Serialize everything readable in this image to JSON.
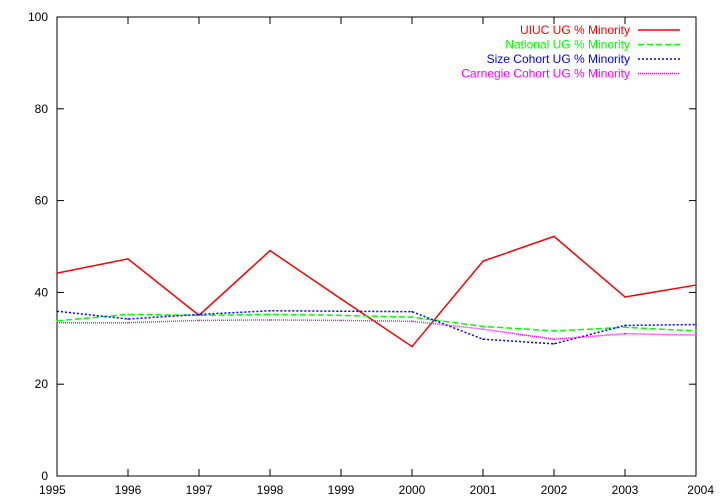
{
  "chart_data": {
    "type": "line",
    "title": "",
    "xlabel": "",
    "ylabel": "",
    "x": [
      1995,
      1996,
      1997,
      1998,
      1999,
      2000,
      2001,
      2002,
      2003,
      2004
    ],
    "xlim": [
      1995,
      2004
    ],
    "ylim": [
      0,
      100
    ],
    "yticks": [
      0,
      20,
      40,
      60,
      80,
      100
    ],
    "xticks": [
      1995,
      1996,
      1997,
      1998,
      1999,
      2000,
      2001,
      2002,
      2003,
      2004
    ],
    "grid": false,
    "legend_position": "top-right",
    "series": [
      {
        "name": "UIUC UG % Minority",
        "color": "#ff0000",
        "dash": "solid",
        "values": [
          44.2,
          47.3,
          35.0,
          49.1,
          38.6,
          28.2,
          46.8,
          52.2,
          39.0,
          41.6
        ]
      },
      {
        "name": "National UG % Minority",
        "color": "#00ff00",
        "dash": "dashed",
        "values": [
          33.8,
          35.2,
          35.0,
          35.2,
          35.0,
          34.6,
          32.6,
          31.6,
          32.4,
          31.6
        ]
      },
      {
        "name": "Size Cohort UG % Minority",
        "color": "#0000ff",
        "dash": "dotted",
        "values": [
          35.9,
          34.2,
          35.2,
          36.0,
          35.9,
          35.8,
          29.8,
          28.8,
          32.8,
          33.0
        ]
      },
      {
        "name": "Carnegie Cohort UG % Minority",
        "color": "#ff00ff",
        "dash": "dotted-fine",
        "values": [
          33.4,
          33.4,
          33.9,
          34.0,
          33.9,
          33.7,
          32.0,
          29.8,
          31.0,
          30.7
        ]
      }
    ]
  }
}
